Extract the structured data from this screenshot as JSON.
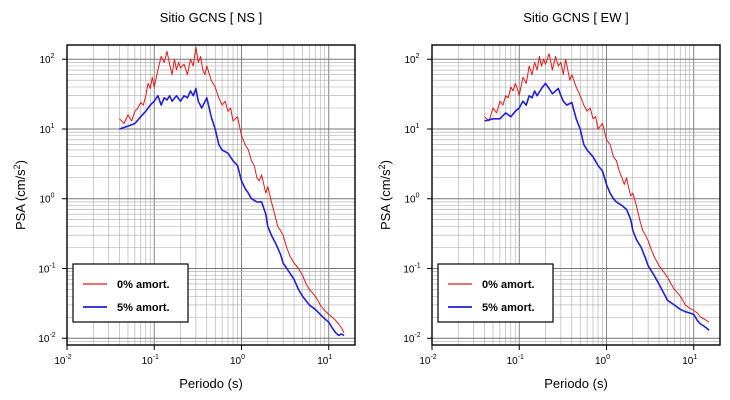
{
  "chart_data": [
    {
      "type": "line",
      "title": "Sitio GCNS [ NS ]",
      "xlabel": "Periodo (s)",
      "ylabel_main": "PSA (cm/s",
      "ylabel_sup": "2",
      "ylabel_end": ")",
      "x_scale": "log",
      "y_scale": "log",
      "xlim": [
        0.01,
        20
      ],
      "ylim": [
        0.008,
        160
      ],
      "grid": true,
      "legend_position": "bottom-left",
      "series": [
        {
          "name": "0% amort.",
          "color": "#e31a1c",
          "x": [
            0.04,
            0.045,
            0.05,
            0.055,
            0.06,
            0.065,
            0.07,
            0.075,
            0.08,
            0.085,
            0.09,
            0.095,
            0.1,
            0.11,
            0.12,
            0.13,
            0.14,
            0.15,
            0.16,
            0.17,
            0.18,
            0.19,
            0.2,
            0.22,
            0.24,
            0.26,
            0.28,
            0.3,
            0.32,
            0.34,
            0.36,
            0.38,
            0.4,
            0.45,
            0.5,
            0.55,
            0.6,
            0.65,
            0.7,
            0.75,
            0.8,
            0.9,
            1.0,
            1.1,
            1.2,
            1.3,
            1.4,
            1.5,
            1.6,
            1.7,
            1.8,
            1.9,
            2.0,
            2.2,
            2.4,
            2.6,
            2.8,
            3.0,
            3.3,
            3.6,
            4.0,
            4.5,
            5.0,
            5.5,
            6.0,
            6.5,
            7.0,
            7.5,
            8.0,
            9.0,
            10,
            11,
            12,
            13,
            14,
            15
          ],
          "y": [
            14,
            12,
            16,
            13,
            18,
            20,
            24,
            22,
            30,
            45,
            38,
            55,
            40,
            70,
            110,
            90,
            130,
            85,
            60,
            100,
            70,
            90,
            75,
            85,
            60,
            100,
            80,
            150,
            90,
            110,
            70,
            60,
            80,
            50,
            40,
            28,
            22,
            25,
            18,
            20,
            13,
            15,
            8,
            6,
            5,
            3.5,
            3,
            2,
            1.8,
            2.2,
            1.6,
            1.2,
            1.5,
            0.9,
            0.6,
            0.4,
            0.35,
            0.3,
            0.2,
            0.15,
            0.12,
            0.1,
            0.08,
            0.06,
            0.05,
            0.045,
            0.04,
            0.035,
            0.03,
            0.025,
            0.022,
            0.02,
            0.018,
            0.016,
            0.014,
            0.012
          ]
        },
        {
          "name": "5% amort.",
          "color": "#1f1fd8",
          "x": [
            0.04,
            0.05,
            0.06,
            0.07,
            0.08,
            0.09,
            0.1,
            0.11,
            0.12,
            0.13,
            0.14,
            0.15,
            0.16,
            0.18,
            0.2,
            0.22,
            0.24,
            0.26,
            0.28,
            0.3,
            0.32,
            0.35,
            0.4,
            0.45,
            0.5,
            0.55,
            0.6,
            0.7,
            0.8,
            0.9,
            1.0,
            1.1,
            1.2,
            1.3,
            1.5,
            1.7,
            1.9,
            2.0,
            2.2,
            2.5,
            2.8,
            3.0,
            3.5,
            4.0,
            4.5,
            5.0,
            6.0,
            7.0,
            8.0,
            9.0,
            10,
            11,
            12,
            13,
            14,
            15
          ],
          "y": [
            10,
            11,
            12,
            15,
            18,
            22,
            25,
            30,
            22,
            28,
            26,
            30,
            25,
            30,
            25,
            30,
            28,
            35,
            30,
            38,
            25,
            20,
            28,
            15,
            10,
            6,
            5,
            4.5,
            3.5,
            3,
            1.8,
            1.4,
            1.2,
            1.0,
            0.9,
            0.9,
            0.6,
            0.4,
            0.3,
            0.22,
            0.16,
            0.12,
            0.09,
            0.07,
            0.05,
            0.04,
            0.03,
            0.026,
            0.022,
            0.019,
            0.017,
            0.014,
            0.012,
            0.011,
            0.0115,
            0.011
          ]
        }
      ]
    },
    {
      "type": "line",
      "title": "Sitio GCNS [ EW ]",
      "xlabel": "Periodo (s)",
      "ylabel_main": "PSA (cm/s",
      "ylabel_sup": "2",
      "ylabel_end": ")",
      "x_scale": "log",
      "y_scale": "log",
      "xlim": [
        0.01,
        20
      ],
      "ylim": [
        0.008,
        160
      ],
      "grid": true,
      "legend_position": "bottom-left",
      "series": [
        {
          "name": "0% amort.",
          "color": "#e31a1c",
          "x": [
            0.04,
            0.045,
            0.05,
            0.055,
            0.06,
            0.065,
            0.07,
            0.075,
            0.08,
            0.085,
            0.09,
            0.095,
            0.1,
            0.11,
            0.12,
            0.13,
            0.14,
            0.15,
            0.16,
            0.17,
            0.18,
            0.19,
            0.2,
            0.22,
            0.24,
            0.26,
            0.28,
            0.3,
            0.32,
            0.34,
            0.36,
            0.38,
            0.4,
            0.45,
            0.5,
            0.55,
            0.6,
            0.65,
            0.7,
            0.75,
            0.8,
            0.9,
            1.0,
            1.1,
            1.2,
            1.3,
            1.4,
            1.5,
            1.6,
            1.7,
            1.8,
            1.9,
            2.0,
            2.2,
            2.4,
            2.6,
            2.8,
            3.0,
            3.3,
            3.6,
            4.0,
            4.5,
            5.0,
            5.5,
            6.0,
            6.5,
            7.0,
            7.5,
            8.0,
            9.0,
            10,
            11,
            12,
            13,
            14,
            15
          ],
          "y": [
            15,
            13,
            20,
            17,
            25,
            22,
            30,
            28,
            40,
            35,
            45,
            38,
            30,
            55,
            45,
            80,
            60,
            90,
            70,
            110,
            80,
            100,
            85,
            120,
            70,
            110,
            80,
            90,
            60,
            100,
            70,
            50,
            60,
            40,
            30,
            22,
            18,
            20,
            14,
            15,
            10,
            12,
            7,
            6,
            4,
            3.5,
            2.5,
            2,
            1.6,
            2,
            1.4,
            1.1,
            1.2,
            0.8,
            0.5,
            0.35,
            0.3,
            0.25,
            0.18,
            0.14,
            0.11,
            0.09,
            0.075,
            0.06,
            0.05,
            0.045,
            0.04,
            0.035,
            0.03,
            0.027,
            0.025,
            0.023,
            0.02,
            0.019,
            0.018,
            0.017
          ]
        },
        {
          "name": "5% amort.",
          "color": "#1f1fd8",
          "x": [
            0.04,
            0.05,
            0.06,
            0.07,
            0.08,
            0.09,
            0.1,
            0.11,
            0.12,
            0.13,
            0.14,
            0.15,
            0.16,
            0.18,
            0.2,
            0.22,
            0.24,
            0.26,
            0.28,
            0.3,
            0.32,
            0.35,
            0.4,
            0.45,
            0.5,
            0.55,
            0.6,
            0.7,
            0.8,
            0.9,
            1.0,
            1.1,
            1.2,
            1.3,
            1.5,
            1.7,
            1.9,
            2.0,
            2.2,
            2.5,
            2.8,
            3.0,
            3.5,
            4.0,
            4.5,
            5.0,
            6.0,
            7.0,
            8.0,
            9.0,
            10,
            11,
            12,
            13,
            14,
            15
          ],
          "y": [
            13,
            14,
            14,
            17,
            15,
            18,
            20,
            25,
            22,
            30,
            28,
            35,
            30,
            38,
            45,
            38,
            32,
            35,
            38,
            30,
            25,
            22,
            24,
            14,
            10,
            6,
            5,
            4,
            3,
            2.5,
            1.6,
            1.2,
            1.0,
            0.9,
            0.8,
            0.7,
            0.5,
            0.35,
            0.26,
            0.2,
            0.14,
            0.11,
            0.08,
            0.06,
            0.045,
            0.035,
            0.03,
            0.026,
            0.024,
            0.023,
            0.022,
            0.018,
            0.016,
            0.015,
            0.014,
            0.013
          ]
        }
      ]
    }
  ]
}
